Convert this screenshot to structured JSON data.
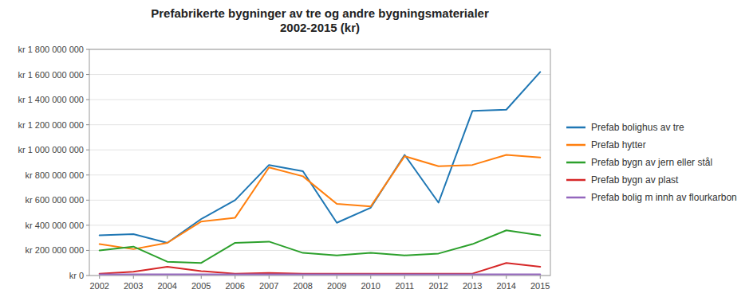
{
  "chart_data": {
    "type": "line",
    "title": "Prefabrikerte bygninger av tre og andre bygningsmaterialer\n2002-2015 (kr)",
    "x": [
      2002,
      2003,
      2004,
      2005,
      2006,
      2007,
      2008,
      2009,
      2010,
      2011,
      2012,
      2013,
      2014,
      2015
    ],
    "series": [
      {
        "name": "Prefab bolighus av tre",
        "values": [
          320000000,
          330000000,
          260000000,
          450000000,
          600000000,
          880000000,
          830000000,
          420000000,
          540000000,
          960000000,
          580000000,
          1310000000,
          1320000000,
          1620000000
        ]
      },
      {
        "name": "Prefab hytter",
        "values": [
          250000000,
          210000000,
          260000000,
          430000000,
          460000000,
          860000000,
          790000000,
          570000000,
          550000000,
          950000000,
          870000000,
          880000000,
          960000000,
          940000000
        ]
      },
      {
        "name": "Prefab bygn av jern eller stål",
        "values": [
          200000000,
          230000000,
          110000000,
          100000000,
          260000000,
          270000000,
          180000000,
          160000000,
          180000000,
          160000000,
          175000000,
          250000000,
          360000000,
          320000000
        ]
      },
      {
        "name": "Prefab bygn av plast",
        "values": [
          15000000,
          30000000,
          70000000,
          35000000,
          15000000,
          20000000,
          15000000,
          15000000,
          15000000,
          15000000,
          15000000,
          15000000,
          100000000,
          70000000
        ]
      },
      {
        "name": "Prefab bolig m innh av flourkarbon",
        "values": [
          10000000,
          10000000,
          10000000,
          10000000,
          10000000,
          10000000,
          10000000,
          10000000,
          10000000,
          10000000,
          10000000,
          10000000,
          10000000,
          10000000
        ]
      }
    ],
    "xlim": [
      2001.7,
      2015.3
    ],
    "xticks": [
      2002,
      2003,
      2004,
      2005,
      2006,
      2007,
      2008,
      2009,
      2010,
      2011,
      2012,
      2013,
      2014,
      2015
    ],
    "ylim": [
      0,
      1800000000
    ],
    "yticks": [
      {
        "value": 0,
        "label": "kr 0"
      },
      {
        "value": 200000000,
        "label": "kr 200 000 000"
      },
      {
        "value": 400000000,
        "label": "kr 400 000 000"
      },
      {
        "value": 600000000,
        "label": "kr 600 000 000"
      },
      {
        "value": 800000000,
        "label": "kr 800 000 000"
      },
      {
        "value": 1000000000,
        "label": "kr 1 000 000 000"
      },
      {
        "value": 1200000000,
        "label": "kr 1 200 000 000"
      },
      {
        "value": 1400000000,
        "label": "kr 1 400 000 000"
      },
      {
        "value": 1600000000,
        "label": "kr 1 600 000 000"
      },
      {
        "value": 1800000000,
        "label": "kr 1 800 000 000"
      }
    ],
    "grid": true,
    "legend": "right"
  }
}
